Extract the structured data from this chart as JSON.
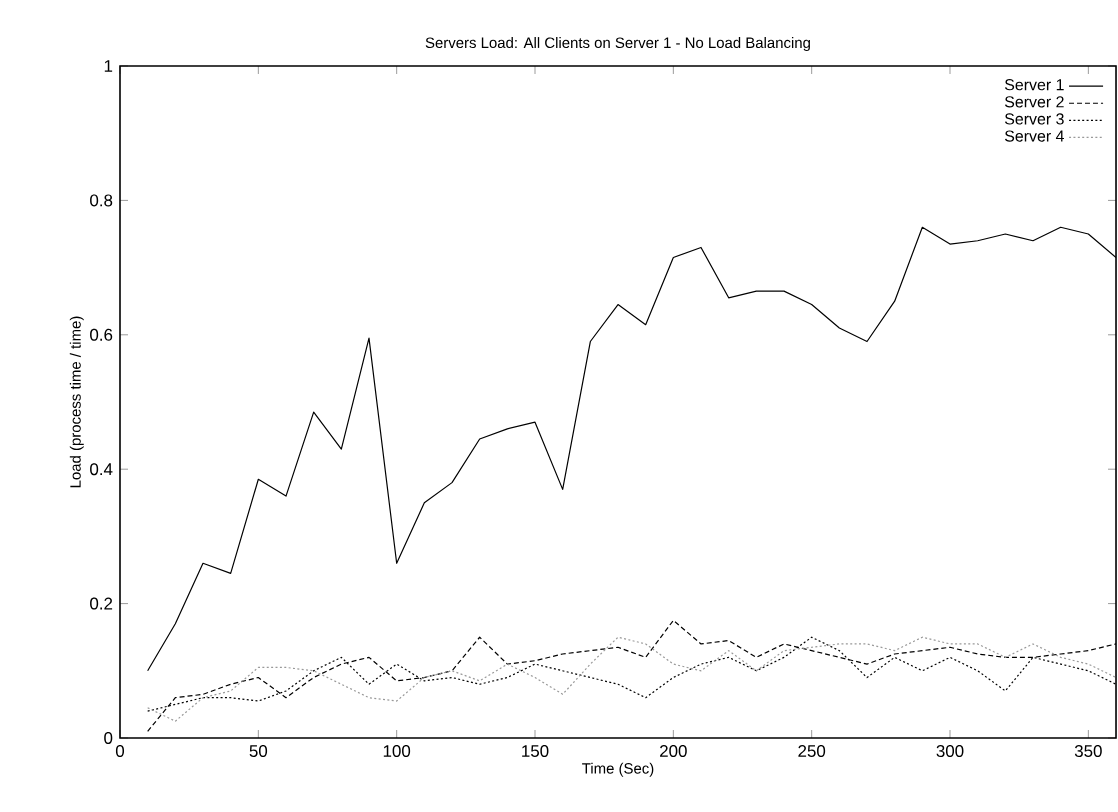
{
  "chart_data": {
    "type": "line",
    "title": "Servers Load: All Clients on Server 1 - No Load Balancing",
    "xlabel": "Time (Sec)",
    "ylabel": "Load (process time / time)",
    "x": [
      10,
      20,
      30,
      40,
      50,
      60,
      70,
      80,
      90,
      100,
      110,
      120,
      130,
      140,
      150,
      160,
      170,
      180,
      190,
      200,
      210,
      220,
      230,
      240,
      250,
      260,
      270,
      280,
      290,
      300,
      310,
      320,
      330,
      340,
      350,
      360
    ],
    "xlim": [
      0,
      360
    ],
    "ylim": [
      0,
      1
    ],
    "xticks": [
      0,
      50,
      100,
      150,
      200,
      250,
      300,
      350
    ],
    "yticks": [
      0,
      0.2,
      0.4,
      0.6,
      0.8,
      1
    ],
    "grid": false,
    "legend": "top right",
    "marker": "none",
    "series": [
      {
        "name": "Server 1",
        "color": "#000000",
        "line_style": "solid",
        "values": [
          0.1,
          0.17,
          0.26,
          0.245,
          0.385,
          0.36,
          0.485,
          0.43,
          0.595,
          0.26,
          0.35,
          0.38,
          0.445,
          0.46,
          0.47,
          0.37,
          0.59,
          0.645,
          0.615,
          0.715,
          0.73,
          0.655,
          0.665,
          0.665,
          0.645,
          0.61,
          0.59,
          0.65,
          0.76,
          0.735,
          0.74,
          0.75,
          0.74,
          0.76,
          0.75,
          0.715
        ]
      },
      {
        "name": "Server 2",
        "color": "#000000",
        "line_style": "dashed",
        "values": [
          0.01,
          0.06,
          0.065,
          0.08,
          0.09,
          0.06,
          0.09,
          0.11,
          0.12,
          0.085,
          0.09,
          0.1,
          0.15,
          0.11,
          0.115,
          0.125,
          0.13,
          0.135,
          0.12,
          0.175,
          0.14,
          0.145,
          0.12,
          0.14,
          0.13,
          0.12,
          0.11,
          0.125,
          0.13,
          0.135,
          0.125,
          0.12,
          0.12,
          0.125,
          0.13,
          0.14
        ]
      },
      {
        "name": "Server 3",
        "color": "#000000",
        "line_style": "dotted",
        "values": [
          0.04,
          0.05,
          0.06,
          0.06,
          0.055,
          0.07,
          0.1,
          0.12,
          0.08,
          0.11,
          0.085,
          0.09,
          0.08,
          0.09,
          0.11,
          0.1,
          0.09,
          0.08,
          0.06,
          0.09,
          0.11,
          0.12,
          0.1,
          0.12,
          0.15,
          0.13,
          0.09,
          0.12,
          0.1,
          0.12,
          0.1,
          0.07,
          0.12,
          0.11,
          0.1,
          0.08
        ]
      },
      {
        "name": "Server 4",
        "color": "#999999",
        "line_style": "dotted",
        "values": [
          0.045,
          0.025,
          0.06,
          0.07,
          0.105,
          0.105,
          0.1,
          0.08,
          0.06,
          0.055,
          0.09,
          0.1,
          0.085,
          0.11,
          0.09,
          0.065,
          0.11,
          0.15,
          0.14,
          0.11,
          0.1,
          0.13,
          0.1,
          0.13,
          0.135,
          0.14,
          0.14,
          0.13,
          0.15,
          0.14,
          0.14,
          0.12,
          0.14,
          0.12,
          0.11,
          0.09
        ]
      }
    ]
  }
}
